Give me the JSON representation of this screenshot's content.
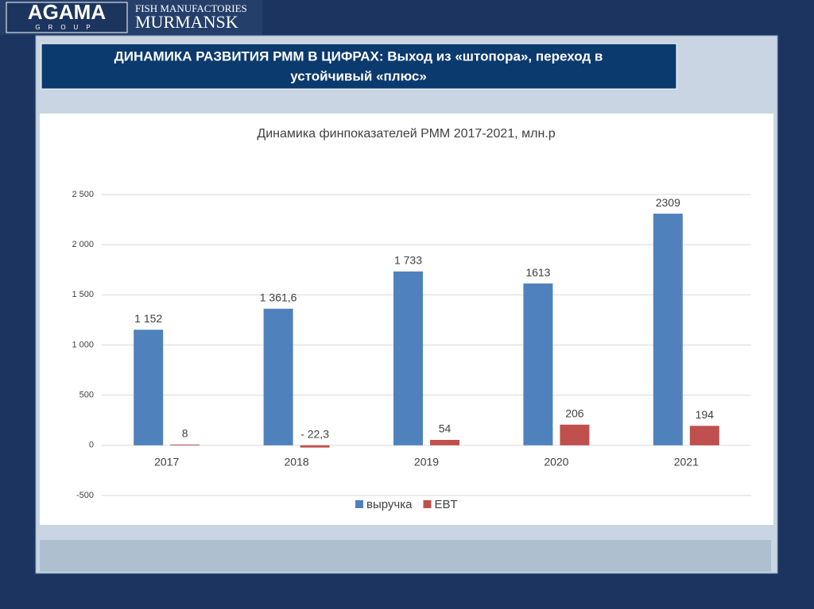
{
  "header": {
    "logo": "AGAMA",
    "logo_sub": "GROUP",
    "company_line1": "FISH MANUFACTORIES",
    "company_line2": "MURMANSK",
    "title_line1": "ДИНАМИКА РАЗВИТИЯ РММ  В ЦИФРАХ: Выход из «штопора», переход в",
    "title_line2": "устойчивый «плюс»"
  },
  "chart_data": {
    "type": "bar",
    "title": "Динамика финпоказателей РММ 2017-2021, млн.р",
    "categories": [
      "2017",
      "2018",
      "2019",
      "2020",
      "2021"
    ],
    "series": [
      {
        "name": "выручка",
        "color": "#4f81bd",
        "values": [
          1152,
          1361.6,
          1733,
          1613,
          2309
        ],
        "value_labels": [
          "1 152",
          "1 361,6",
          "1 733",
          "1613",
          "2309"
        ]
      },
      {
        "name": "EBT",
        "color": "#c0504d",
        "values": [
          8,
          -22.3,
          54,
          206,
          194
        ],
        "value_labels": [
          "8",
          "- 22,3",
          "54",
          "206",
          "194"
        ]
      }
    ],
    "ylim": [
      -500,
      2500
    ],
    "yticks": [
      -500,
      0,
      500,
      {
        "value": 1000,
        "label": "1 000"
      },
      {
        "value": 1500,
        "label": "1 500"
      },
      {
        "value": 2000,
        "label": "2 000"
      },
      {
        "value": 2500,
        "label": "2 500"
      }
    ],
    "grid": true,
    "legend": "bottom"
  }
}
